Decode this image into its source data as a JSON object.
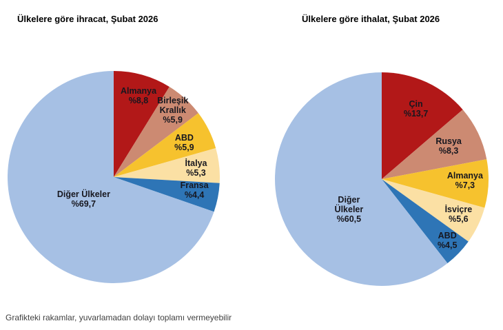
{
  "footnote": "Grafikteki rakamlar, yuvarlamadan dolayı toplamı vermeyebilir",
  "colors": {
    "background": "#FFFFFF",
    "title_text": "#000000",
    "label_text": "#17171F",
    "footnote_text": "#3F3F3F",
    "dark_red": "#B21818",
    "salmon": "#CC8A72",
    "gold": "#F6C22E",
    "cream": "#FBE0A4",
    "blue": "#2E75B6",
    "light_blue": "#A6C0E4"
  },
  "chart_data": [
    {
      "type": "pie",
      "title": "Ülkelere göre ihracat, Şubat 2026",
      "value_unit": "percent",
      "start_angle_deg": 0,
      "direction": "clockwise",
      "slices": [
        {
          "name": "Almanya",
          "value": 8.8,
          "display": "%8,8",
          "color": "#B21818",
          "label_lines": [
            "Almanya",
            "%8,8"
          ],
          "label_angle_deg": 17,
          "label_radius_frac": 0.8
        },
        {
          "name": "Birleşik Krallık",
          "value": 5.9,
          "display": "%5,9",
          "color": "#CC8A72",
          "label_lines": [
            "Birleşik",
            "Krallık",
            "%5,9"
          ],
          "label_angle_deg": 41.5,
          "label_radius_frac": 0.84
        },
        {
          "name": "ABD",
          "value": 5.9,
          "display": "%5,9",
          "color": "#F6C22E",
          "label_lines": [
            "ABD",
            "%5,9"
          ],
          "label_angle_deg": 64,
          "label_radius_frac": 0.74
        },
        {
          "name": "İtalya",
          "value": 5.3,
          "display": "%5,3",
          "color": "#FBE0A4",
          "label_lines": [
            "İtalya",
            "%5,3"
          ],
          "label_angle_deg": 84,
          "label_radius_frac": 0.78
        },
        {
          "name": "Fransa",
          "value": 4.4,
          "display": "%4,4",
          "color": "#2E75B6",
          "label_lines": [
            "Fransa",
            "%4,4"
          ],
          "label_angle_deg": 99,
          "label_radius_frac": 0.77
        },
        {
          "name": "Diğer Ülkeler",
          "value": 69.7,
          "display": "%69,7",
          "color": "#A6C0E4",
          "label_lines": [
            "Diğer Ülkeler",
            "%69,7"
          ],
          "label_angle_deg": 234,
          "label_radius_frac": 0.35
        }
      ]
    },
    {
      "type": "pie",
      "title": "Ülkelere göre ithalat, Şubat 2026",
      "value_unit": "percent",
      "start_angle_deg": 0,
      "direction": "clockwise",
      "slices": [
        {
          "name": "Çin",
          "value": 13.7,
          "display": "%13,7",
          "color": "#B21818",
          "label_lines": [
            "Çin",
            "%13,7"
          ],
          "label_angle_deg": 26,
          "label_radius_frac": 0.73
        },
        {
          "name": "Rusya",
          "value": 8.3,
          "display": "%8,3",
          "color": "#CC8A72",
          "label_lines": [
            "Rusya",
            "%8,3"
          ],
          "label_angle_deg": 63.5,
          "label_radius_frac": 0.7
        },
        {
          "name": "Almanya",
          "value": 7.3,
          "display": "%7,3",
          "color": "#F6C22E",
          "label_lines": [
            "Almanya",
            "%7,3"
          ],
          "label_angle_deg": 91,
          "label_radius_frac": 0.78
        },
        {
          "name": "İsviçre",
          "value": 5.6,
          "display": "%5,6",
          "color": "#FBE0A4",
          "label_lines": [
            "İsviçre",
            "%5,6"
          ],
          "label_angle_deg": 114.5,
          "label_radius_frac": 0.79
        },
        {
          "name": "ABD",
          "value": 4.5,
          "display": "%4,5",
          "color": "#2E75B6",
          "label_lines": [
            "ABD",
            "%4,5"
          ],
          "label_angle_deg": 133,
          "label_radius_frac": 0.84
        },
        {
          "name": "Diğer Ülkeler",
          "value": 60.5,
          "display": "%60,5",
          "color": "#A6C0E4",
          "label_lines": [
            "Diğer",
            "Ülkeler",
            "%60,5"
          ],
          "label_angle_deg": 227,
          "label_radius_frac": 0.42
        }
      ]
    }
  ]
}
